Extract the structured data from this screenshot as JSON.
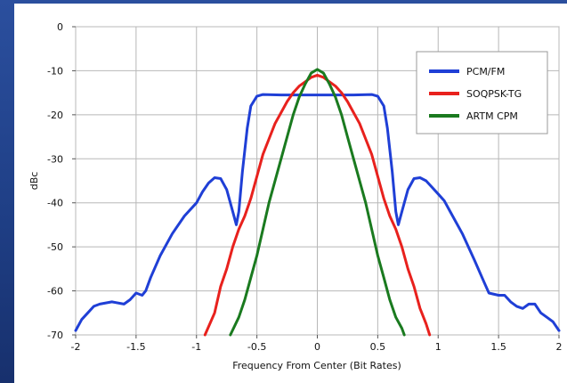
{
  "chart_data": {
    "type": "line",
    "title": "",
    "xlabel": "Frequency From Center (Bit Rates)",
    "ylabel": "dBc",
    "xlim": [
      -2,
      2
    ],
    "ylim": [
      -70,
      0
    ],
    "x_ticks": [
      -2,
      -1.5,
      -1,
      -0.5,
      0,
      0.5,
      1,
      1.5,
      2
    ],
    "y_ticks": [
      0,
      -10,
      -20,
      -30,
      -40,
      -50,
      -60,
      -70
    ],
    "x_tick_labels": [
      "-2",
      "-1.5",
      "-1",
      "-0.5",
      "0",
      "0.5",
      "1",
      "1.5",
      "2"
    ],
    "y_tick_labels": [
      "0",
      "-10",
      "-20",
      "-30",
      "-40",
      "-50",
      "-60",
      "-70"
    ],
    "grid": true,
    "legend_position": "top-right",
    "series": [
      {
        "name": "PCM/FM",
        "color": "#1f3fd6",
        "points": [
          [
            -2.0,
            -69
          ],
          [
            -1.95,
            -66.5
          ],
          [
            -1.9,
            -65
          ],
          [
            -1.85,
            -63.5
          ],
          [
            -1.8,
            -63
          ],
          [
            -1.7,
            -62.5
          ],
          [
            -1.6,
            -63
          ],
          [
            -1.55,
            -62
          ],
          [
            -1.5,
            -60.5
          ],
          [
            -1.45,
            -61
          ],
          [
            -1.42,
            -60
          ],
          [
            -1.38,
            -57
          ],
          [
            -1.3,
            -52
          ],
          [
            -1.2,
            -47
          ],
          [
            -1.1,
            -43
          ],
          [
            -1.0,
            -40
          ],
          [
            -0.95,
            -37.5
          ],
          [
            -0.9,
            -35.5
          ],
          [
            -0.85,
            -34.3
          ],
          [
            -0.8,
            -34.5
          ],
          [
            -0.75,
            -37
          ],
          [
            -0.7,
            -42
          ],
          [
            -0.67,
            -45
          ],
          [
            -0.65,
            -42
          ],
          [
            -0.62,
            -33
          ],
          [
            -0.58,
            -23
          ],
          [
            -0.55,
            -18
          ],
          [
            -0.5,
            -15.8
          ],
          [
            -0.45,
            -15.4
          ],
          [
            -0.3,
            -15.5
          ],
          [
            -0.15,
            -15.5
          ],
          [
            0.0,
            -15.5
          ],
          [
            0.15,
            -15.5
          ],
          [
            0.3,
            -15.5
          ],
          [
            0.45,
            -15.4
          ],
          [
            0.5,
            -15.8
          ],
          [
            0.55,
            -18
          ],
          [
            0.58,
            -23
          ],
          [
            0.62,
            -33
          ],
          [
            0.65,
            -42
          ],
          [
            0.67,
            -45
          ],
          [
            0.7,
            -42
          ],
          [
            0.75,
            -37
          ],
          [
            0.8,
            -34.5
          ],
          [
            0.85,
            -34.3
          ],
          [
            0.9,
            -35
          ],
          [
            0.95,
            -36.5
          ],
          [
            1.0,
            -38
          ],
          [
            1.05,
            -39.5
          ],
          [
            1.1,
            -42
          ],
          [
            1.2,
            -47
          ],
          [
            1.3,
            -53
          ],
          [
            1.38,
            -58
          ],
          [
            1.42,
            -60.5
          ],
          [
            1.5,
            -61
          ],
          [
            1.55,
            -61
          ],
          [
            1.6,
            -62.5
          ],
          [
            1.65,
            -63.5
          ],
          [
            1.7,
            -64
          ],
          [
            1.75,
            -63
          ],
          [
            1.8,
            -63
          ],
          [
            1.85,
            -65
          ],
          [
            1.9,
            -66
          ],
          [
            1.95,
            -67
          ],
          [
            2.0,
            -69
          ]
        ]
      },
      {
        "name": "SOQPSK-TG",
        "color": "#e8211d",
        "points": [
          [
            -0.93,
            -70
          ],
          [
            -0.85,
            -65
          ],
          [
            -0.8,
            -59
          ],
          [
            -0.75,
            -55
          ],
          [
            -0.7,
            -50
          ],
          [
            -0.65,
            -46
          ],
          [
            -0.6,
            -43
          ],
          [
            -0.55,
            -39
          ],
          [
            -0.5,
            -34
          ],
          [
            -0.45,
            -29
          ],
          [
            -0.4,
            -25.5
          ],
          [
            -0.35,
            -22
          ],
          [
            -0.3,
            -19.5
          ],
          [
            -0.25,
            -17
          ],
          [
            -0.2,
            -15
          ],
          [
            -0.15,
            -13.5
          ],
          [
            -0.1,
            -12.5
          ],
          [
            -0.05,
            -11.5
          ],
          [
            0.0,
            -11
          ],
          [
            0.05,
            -11.5
          ],
          [
            0.1,
            -12.5
          ],
          [
            0.15,
            -13.5
          ],
          [
            0.2,
            -15
          ],
          [
            0.25,
            -17
          ],
          [
            0.3,
            -19.5
          ],
          [
            0.35,
            -22
          ],
          [
            0.4,
            -25.5
          ],
          [
            0.45,
            -29
          ],
          [
            0.5,
            -34
          ],
          [
            0.55,
            -39
          ],
          [
            0.6,
            -43
          ],
          [
            0.65,
            -46
          ],
          [
            0.7,
            -50
          ],
          [
            0.75,
            -55
          ],
          [
            0.8,
            -59
          ],
          [
            0.85,
            -64
          ],
          [
            0.9,
            -67.5
          ],
          [
            0.93,
            -70
          ]
        ]
      },
      {
        "name": "ARTM CPM",
        "color": "#1a7a1f",
        "points": [
          [
            -0.72,
            -70
          ],
          [
            -0.65,
            -66
          ],
          [
            -0.6,
            -62
          ],
          [
            -0.55,
            -57
          ],
          [
            -0.5,
            -52
          ],
          [
            -0.45,
            -46
          ],
          [
            -0.4,
            -40
          ],
          [
            -0.35,
            -35
          ],
          [
            -0.3,
            -30
          ],
          [
            -0.25,
            -25
          ],
          [
            -0.2,
            -20
          ],
          [
            -0.15,
            -16
          ],
          [
            -0.1,
            -13
          ],
          [
            -0.05,
            -10.5
          ],
          [
            0.0,
            -9.7
          ],
          [
            0.05,
            -10.5
          ],
          [
            0.1,
            -13
          ],
          [
            0.15,
            -16
          ],
          [
            0.2,
            -20
          ],
          [
            0.25,
            -25
          ],
          [
            0.3,
            -30
          ],
          [
            0.35,
            -35
          ],
          [
            0.4,
            -40
          ],
          [
            0.45,
            -46
          ],
          [
            0.5,
            -52
          ],
          [
            0.55,
            -57
          ],
          [
            0.6,
            -62
          ],
          [
            0.65,
            -66
          ],
          [
            0.7,
            -68.5
          ],
          [
            0.72,
            -70
          ]
        ]
      }
    ]
  }
}
